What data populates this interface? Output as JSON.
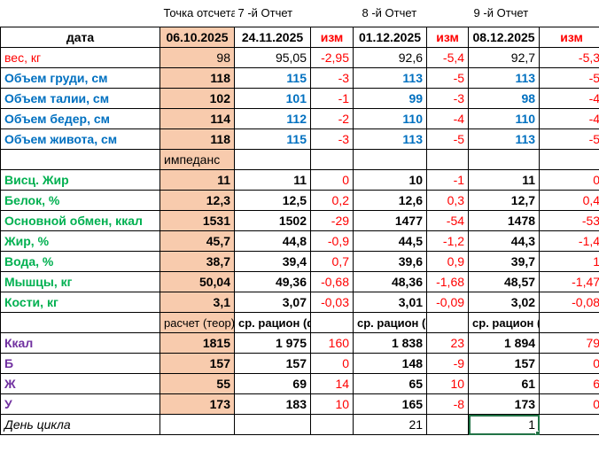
{
  "header_row": {
    "baseline_label": "Точка отсчета",
    "report7_label": "7 -й Отчет",
    "report8_label": "8 -й Отчет",
    "report9_label": "9 -й Отчет"
  },
  "columns": {
    "label": "дата",
    "baseline_date": "06.10.2025",
    "d1": "24.11.2025",
    "chg1": "изм",
    "d2": "01.12.2025",
    "chg2": "изм",
    "d3": "08.12.2025",
    "chg3": "изм"
  },
  "measurements": [
    {
      "label": "вес, кг",
      "base": "98",
      "v1": "95,05",
      "c1": "-2,95",
      "v2": "92,6",
      "c2": "-5,4",
      "v3": "92,7",
      "c3": "-5,3"
    },
    {
      "label": "Объем груди, см",
      "base": "118",
      "v1": "115",
      "c1": "-3",
      "v2": "113",
      "c2": "-5",
      "v3": "113",
      "c3": "-5"
    },
    {
      "label": "Объем талии, см",
      "base": "102",
      "v1": "101",
      "c1": "-1",
      "v2": "99",
      "c2": "-3",
      "v3": "98",
      "c3": "-4"
    },
    {
      "label": "Объем бедер, см",
      "base": "114",
      "v1": "112",
      "c1": "-2",
      "v2": "110",
      "c2": "-4",
      "v3": "110",
      "c3": "-4"
    },
    {
      "label": "Объем живота, см",
      "base": "118",
      "v1": "115",
      "c1": "-3",
      "v2": "113",
      "c2": "-5",
      "v3": "113",
      "c3": "-5"
    }
  ],
  "impedance_label": "импеданс",
  "impedance": [
    {
      "label": "Висц. Жир",
      "base": "11",
      "v1": "11",
      "c1": "0",
      "v2": "10",
      "c2": "-1",
      "v3": "11",
      "c3": "0"
    },
    {
      "label": "Белок, %",
      "base": "12,3",
      "v1": "12,5",
      "c1": "0,2",
      "v2": "12,6",
      "c2": "0,3",
      "v3": "12,7",
      "c3": "0,4"
    },
    {
      "label": "Основной обмен, ккал",
      "base": "1531",
      "v1": "1502",
      "c1": "-29",
      "v2": "1477",
      "c2": "-54",
      "v3": "1478",
      "c3": "-53"
    },
    {
      "label": "Жир, %",
      "base": "45,7",
      "v1": "44,8",
      "c1": "-0,9",
      "v2": "44,5",
      "c2": "-1,2",
      "v3": "44,3",
      "c3": "-1,4"
    },
    {
      "label": "Вода, %",
      "base": "38,7",
      "v1": "39,4",
      "c1": "0,7",
      "v2": "39,6",
      "c2": "0,9",
      "v3": "39,7",
      "c3": "1"
    },
    {
      "label": "Мышцы, кг",
      "base": "50,04",
      "v1": "49,36",
      "c1": "-0,68",
      "v2": "48,36",
      "c2": "-1,68",
      "v3": "48,57",
      "c3": "-1,47"
    },
    {
      "label": "Кости, кг",
      "base": "3,1",
      "v1": "3,07",
      "c1": "-0,03",
      "v2": "3,01",
      "c2": "-0,09",
      "v3": "3,02",
      "c3": "-0,08"
    }
  ],
  "ration_headers": {
    "base": "расчет (теор)",
    "r1": "ср. рацион (факт)",
    "r2": "ср. рацион (факт)",
    "r3": "ср. рацион (факт)"
  },
  "nutrition": [
    {
      "label": "Ккал",
      "base": "1815",
      "v1": "1 975",
      "c1": "160",
      "v2": "1 838",
      "c2": "23",
      "v3": "1 894",
      "c3": "79"
    },
    {
      "label": "Б",
      "base": "157",
      "v1": "157",
      "c1": "0",
      "v2": "148",
      "c2": "-9",
      "v3": "157",
      "c3": "0"
    },
    {
      "label": "Ж",
      "base": "55",
      "v1": "69",
      "c1": "14",
      "v2": "65",
      "c2": "10",
      "v3": "61",
      "c3": "6"
    },
    {
      "label": "У",
      "base": "173",
      "v1": "183",
      "c1": "10",
      "v2": "165",
      "c2": "-8",
      "v3": "173",
      "c3": "0"
    }
  ],
  "cycle": {
    "label": "День цикла",
    "v2": "21",
    "v3": "1"
  },
  "colors": {
    "baseline_fill": "#f8cbad",
    "measure_label": "#0070c0",
    "impedance_label": "#00b050",
    "nutrition_label": "#7030a0",
    "change": "#ff0000"
  }
}
